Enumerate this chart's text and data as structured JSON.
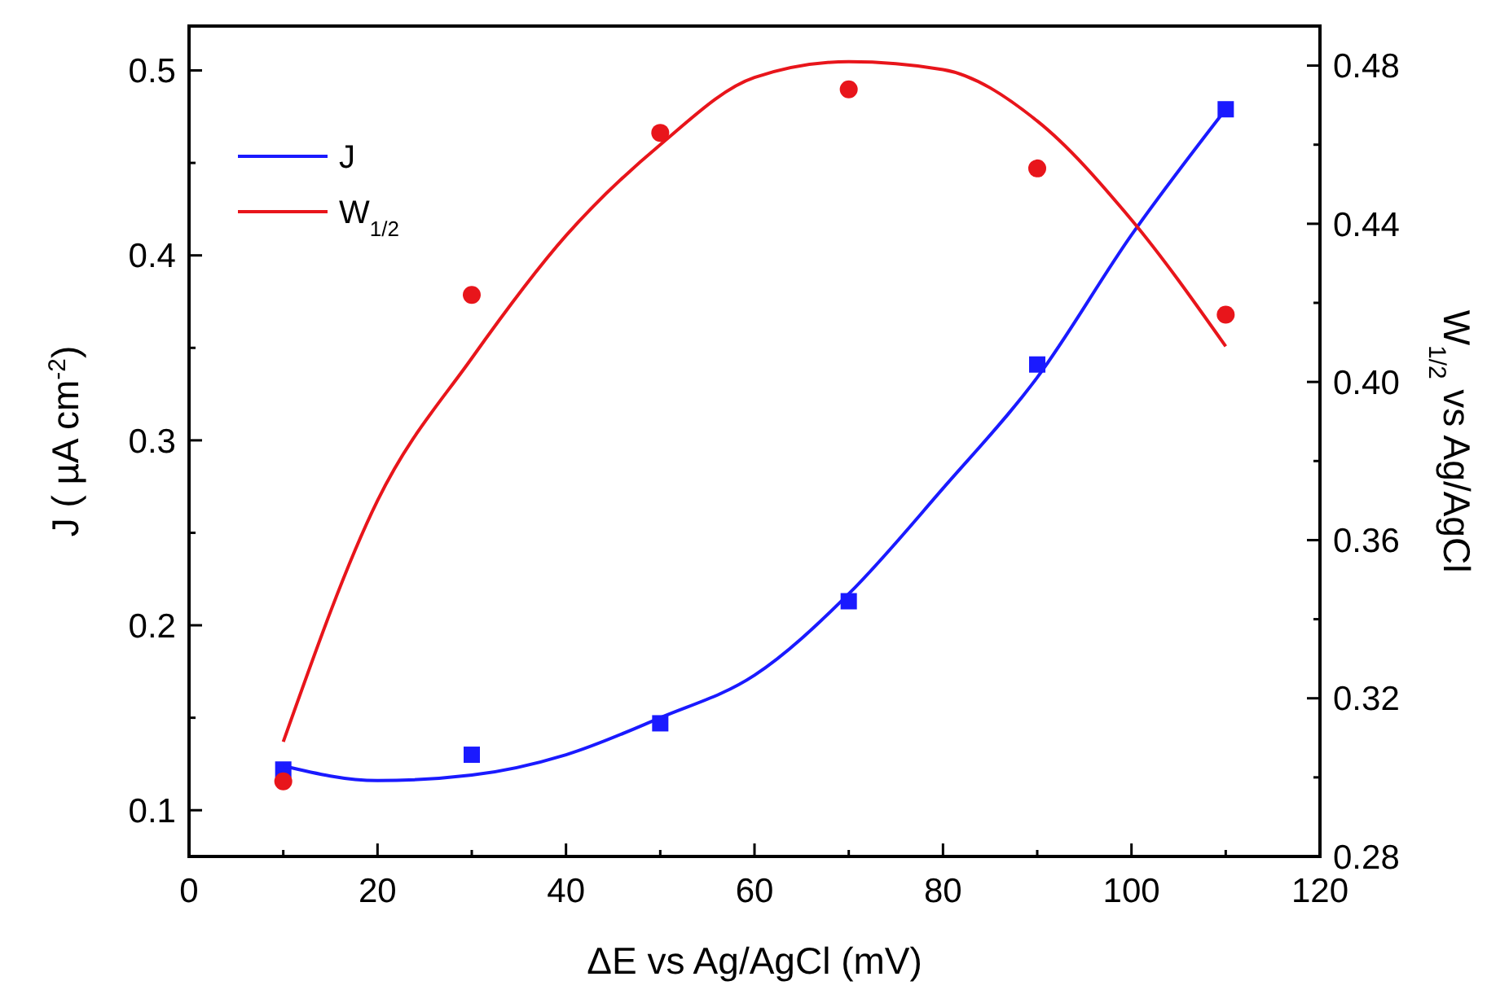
{
  "chart_data": {
    "type": "scatter",
    "xlabel": "ΔE vs Ag/AgCl (mV)",
    "ylabel": "J ( µA cm$^{-2}$)",
    "y2label": "W$_{1/2}$ vs Ag/AgCl",
    "xlim": [
      0,
      120
    ],
    "xticks": [
      0,
      20,
      40,
      60,
      80,
      100,
      120
    ],
    "ylim": [
      0.075,
      0.524
    ],
    "yticks": [
      0.1,
      0.2,
      0.3,
      0.4,
      0.5
    ],
    "y2lim": [
      0.28,
      0.49
    ],
    "y2ticks": [
      0.28,
      0.32,
      0.36,
      {
        "value": 0.4,
        "label": "0.40"
      },
      0.44,
      0.48
    ],
    "grid": false,
    "legend": "top left",
    "series": [
      {
        "marker": "square",
        "color": "#1a1aff",
        "x": [
          10,
          30,
          50,
          70,
          90,
          110
        ],
        "values": [
          0.122,
          0.13,
          0.147,
          0.213,
          0.341,
          0.479
        ]
      },
      {
        "marker": "circle",
        "axis": "y2",
        "color": "#e8151b",
        "x": [
          10,
          30,
          50,
          70,
          90,
          110
        ],
        "values": [
          0.299,
          0.422,
          0.463,
          0.474,
          0.454,
          0.417
        ]
      },
      {
        "type": "line",
        "name": "J",
        "color": "#1a1aff",
        "x": [
          10,
          20,
          30,
          40,
          50,
          60,
          70,
          80,
          90,
          100,
          110
        ],
        "values": [
          0.124,
          0.116,
          0.119,
          0.13,
          0.15,
          0.173,
          0.217,
          0.274,
          0.334,
          0.411,
          0.479
        ]
      },
      {
        "type": "line",
        "name": "W$_{1/2}$",
        "axis": "y2",
        "color": "#e8151b",
        "x": [
          10,
          20,
          30,
          40,
          50,
          60,
          70,
          80,
          90,
          100,
          110
        ],
        "values": [
          0.309,
          0.37,
          0.406,
          0.437,
          0.46,
          0.477,
          0.481,
          0.479,
          0.466,
          0.441,
          0.409
        ]
      }
    ]
  }
}
